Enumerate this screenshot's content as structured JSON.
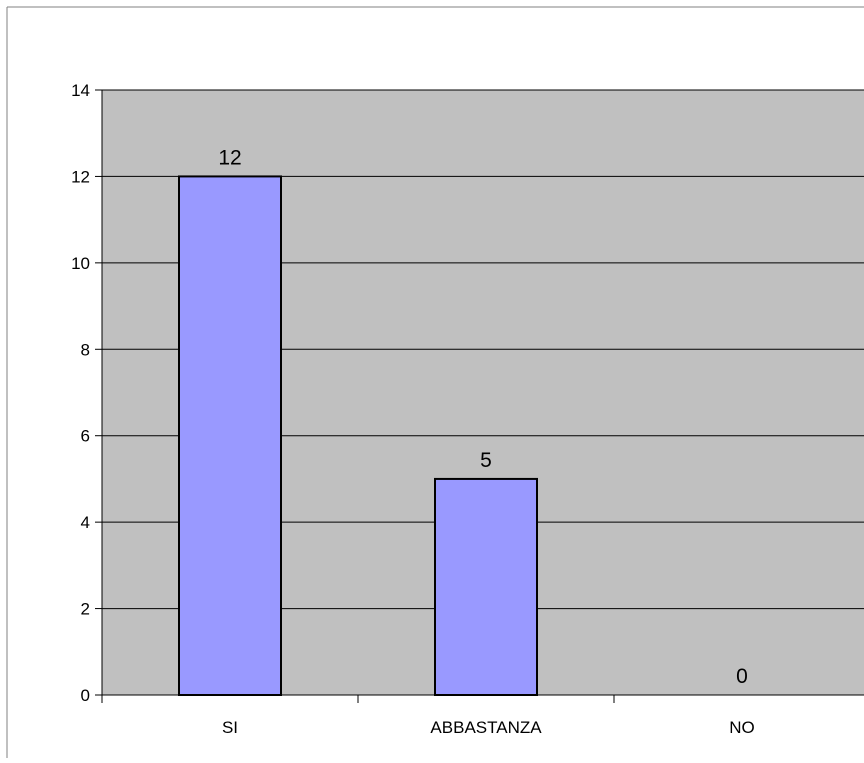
{
  "chart_data": {
    "type": "bar",
    "categories": [
      "SI",
      "ABBASTANZA",
      "NO"
    ],
    "values": [
      12,
      5,
      0
    ],
    "data_labels": [
      "12",
      "5",
      "0"
    ],
    "title": "",
    "xlabel": "",
    "ylabel": "",
    "ylim": [
      0,
      14
    ],
    "yticks": [
      0,
      2,
      4,
      6,
      8,
      10,
      12,
      14
    ],
    "ytick_labels": [
      "0",
      "2",
      "4",
      "6",
      "8",
      "10",
      "12",
      "14"
    ],
    "grid": true,
    "legend": "none",
    "colors": {
      "bar_fill": "#9999ff",
      "bar_stroke": "#000000",
      "plot_background": "#c0c0c0",
      "gridline": "#000000",
      "page_background": "#ffffff",
      "frame": "#808080"
    }
  }
}
